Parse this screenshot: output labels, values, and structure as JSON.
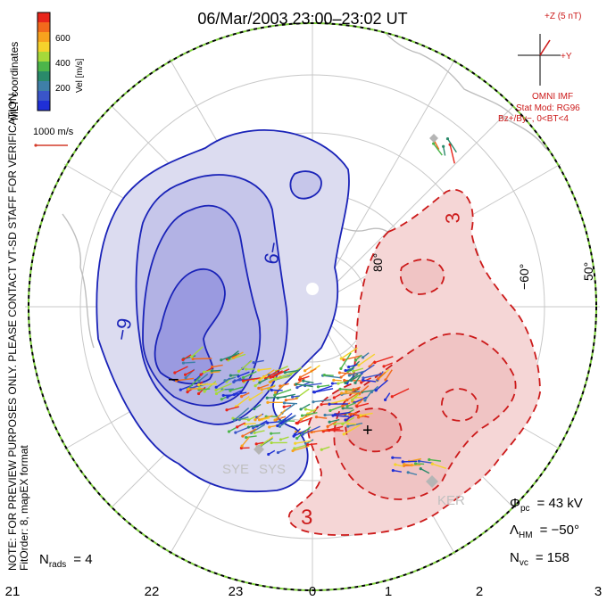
{
  "title": "06/Mar/2003 23:00–23:02 UT",
  "colorbar": {
    "label": "Vel [m/s]",
    "ticks": [
      "600",
      "400",
      "200"
    ],
    "colors": [
      "#e8251b",
      "#f26a1c",
      "#f7a21e",
      "#f5d22c",
      "#a6d93a",
      "#4cb54a",
      "#2a8a6a",
      "#3f7fa8",
      "#3a55c9",
      "#1f2fd6"
    ]
  },
  "side_notes": {
    "coords": "MLT coordinates",
    "preview": "NOTE: FOR PREVIEW PURPOSES ONLY. PLEASE CONTACT VT-SD STAFF FOR VERIFICATION.",
    "fitorder": "FitOrder: 8, mapEX format"
  },
  "velocity_scale": "1000 m/s",
  "imf": {
    "z_label": "+Z (5 nT)",
    "y_label": "+Y",
    "omni": "OMNI IMF",
    "stat_mod": "Stat Mod: RG96",
    "bz_by": "Bz+/By−, 0<BT<4"
  },
  "lat_labels": [
    "80°",
    "−60°",
    "50°"
  ],
  "mlt_labels": [
    "21",
    "22",
    "23",
    "0",
    "1",
    "2",
    "3"
  ],
  "contour_labels": {
    "neg_mid": "−9",
    "neg_low": "−9",
    "pos_top": "3",
    "pos_bottom": "3"
  },
  "stations": [
    "SYE",
    "SYS",
    "KER"
  ],
  "stats": {
    "phi_pc": "= 43 kV",
    "lambda_hm": "= −50°",
    "n_vc": "= 158",
    "n_rads": "= 4"
  },
  "symbols": {
    "phi": "Φ",
    "phi_sub": "pc",
    "lambda": "Λ",
    "lambda_sub": "HM",
    "n": "N",
    "vc_sub": "vc",
    "rads_sub": "rads",
    "minus": "−",
    "plus": "+"
  },
  "colors": {
    "negative": "#1a23b8",
    "positive": "#cc1a1a",
    "boundary_dash_a": "#000000",
    "boundary_dash_b": "#7dcf3a"
  }
}
